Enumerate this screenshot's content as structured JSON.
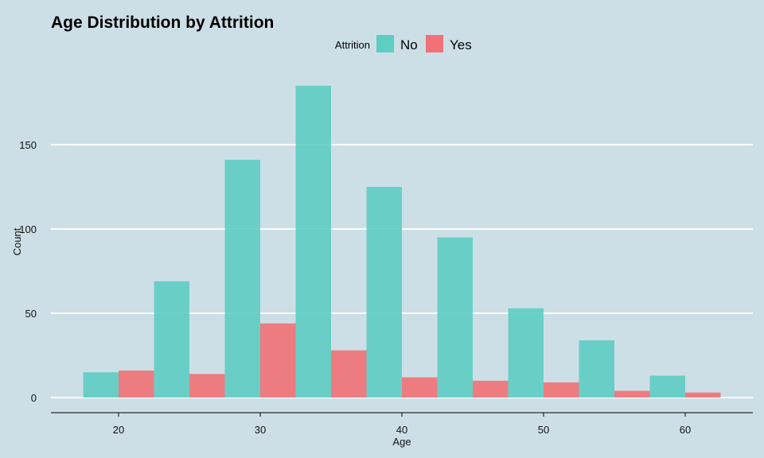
{
  "chart_data": {
    "type": "bar",
    "title": "Age Distribution by Attrition",
    "xlabel": "Age",
    "ylabel": "Count",
    "legend": {
      "title": "Attrition",
      "placement": "top-center"
    },
    "bin_centers": [
      20,
      25,
      30,
      35,
      40,
      45,
      50,
      55,
      60
    ],
    "series": [
      {
        "name": "No",
        "color": "#5ecdc2",
        "values": [
          15,
          69,
          141,
          185,
          125,
          95,
          53,
          34,
          13
        ]
      },
      {
        "name": "Yes",
        "color": "#f17176",
        "values": [
          16,
          14,
          44,
          28,
          12,
          10,
          9,
          4,
          3
        ]
      }
    ],
    "x_ticks": [
      20,
      30,
      40,
      50,
      60
    ],
    "y_ticks": [
      0,
      50,
      100,
      150
    ],
    "xlim": [
      15,
      65
    ],
    "ylim": [
      0,
      190
    ],
    "grid": "horizontal major lines",
    "background": "#cddfe6"
  }
}
